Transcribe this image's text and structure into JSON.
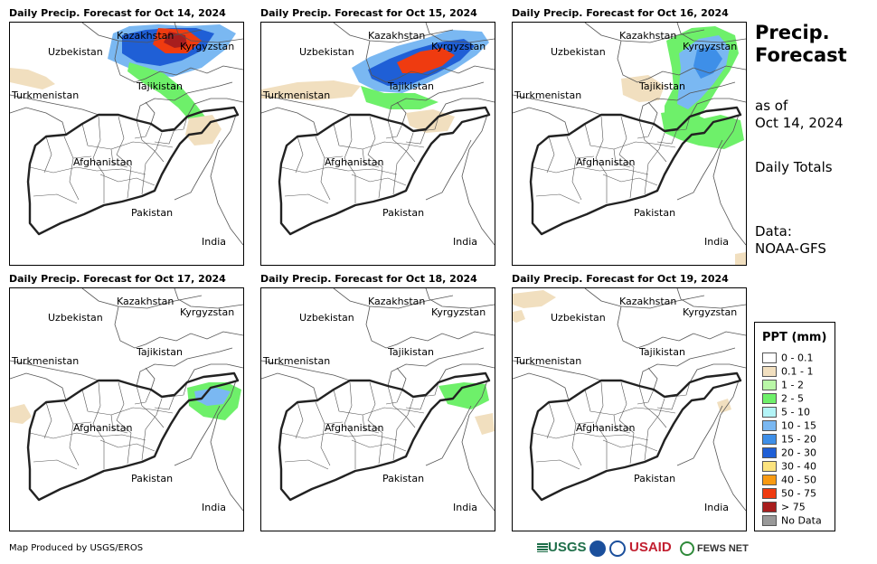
{
  "panels": [
    {
      "title": "Daily Precip. Forecast for Oct 14, 2024"
    },
    {
      "title": "Daily Precip. Forecast for Oct 15, 2024"
    },
    {
      "title": "Daily Precip. Forecast for Oct 16, 2024"
    },
    {
      "title": "Daily Precip. Forecast for Oct 17, 2024"
    },
    {
      "title": "Daily Precip. Forecast for Oct 18, 2024"
    },
    {
      "title": "Daily Precip. Forecast for Oct 19, 2024"
    }
  ],
  "countries": {
    "kazakhstan": "Kazakhstan",
    "uzbekistan": "Uzbekistan",
    "kyrgyzstan": "Kyrgyzstan",
    "turkmenistan": "Turkmenistan",
    "tajikistan": "Tajikistan",
    "afghanistan": "Afghanistan",
    "pakistan": "Pakistan",
    "india": "India"
  },
  "side": {
    "title": "Precip. Forecast",
    "as_of_line1": "as of",
    "as_of_line2": "Oct 14, 2024",
    "totals": "Daily Totals",
    "data_label": "Data:",
    "data_source": "NOAA-GFS"
  },
  "legend": {
    "title": "PPT (mm)",
    "items": [
      {
        "label": "0 - 0.1",
        "color": "#ffffff"
      },
      {
        "label": "0.1 - 1",
        "color": "#f1dfbf"
      },
      {
        "label": "1 - 2",
        "color": "#b9f7a7"
      },
      {
        "label": "2 - 5",
        "color": "#6ef06a"
      },
      {
        "label": "5 - 10",
        "color": "#b3f4f7"
      },
      {
        "label": "10 - 15",
        "color": "#7ab8f2"
      },
      {
        "label": "15 - 20",
        "color": "#3e8fe8"
      },
      {
        "label": "20 - 30",
        "color": "#1f5fd6"
      },
      {
        "label": "30 - 40",
        "color": "#fbe37e"
      },
      {
        "label": "40 - 50",
        "color": "#f99a12"
      },
      {
        "label": "50 - 75",
        "color": "#ef3b10"
      },
      {
        "label": "> 75",
        "color": "#a81e1e"
      },
      {
        "label": "No Data",
        "color": "#999999"
      }
    ]
  },
  "footer": {
    "credit": "Map Produced by USGS/EROS",
    "logo_usgs": "USGS",
    "logo_usaid": "USAID",
    "logo_fews": "FEWS NET"
  }
}
